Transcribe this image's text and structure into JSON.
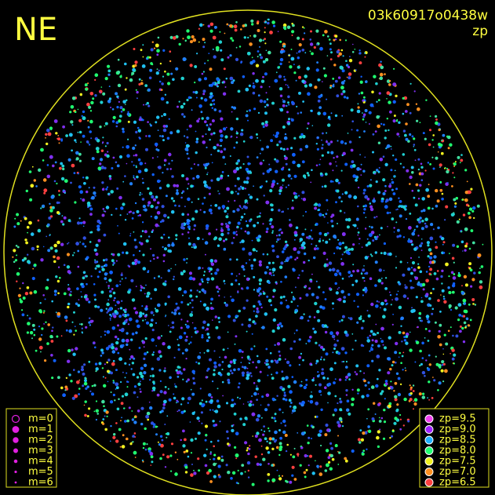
{
  "header": {
    "label": "NE",
    "id": "03k60917o0438w",
    "mode": "zp"
  },
  "magnitude_legend": {
    "color": "#e020e0",
    "items": [
      "m=0",
      "m=1",
      "m=2",
      "m=3",
      "m=4",
      "m=5",
      "m=6"
    ]
  },
  "zp_legend": {
    "items": [
      {
        "label": "zp=9.5",
        "color": "#f040f0"
      },
      {
        "label": "zp=9.0",
        "color": "#a020ff"
      },
      {
        "label": "zp=8.5",
        "color": "#20b0ff"
      },
      {
        "label": "zp=8.0",
        "color": "#20ff70"
      },
      {
        "label": "zp=7.5",
        "color": "#f0f020"
      },
      {
        "label": "zp=7.0",
        "color": "#ff9020"
      },
      {
        "label": "zp=6.5",
        "color": "#ff4040"
      }
    ]
  }
}
